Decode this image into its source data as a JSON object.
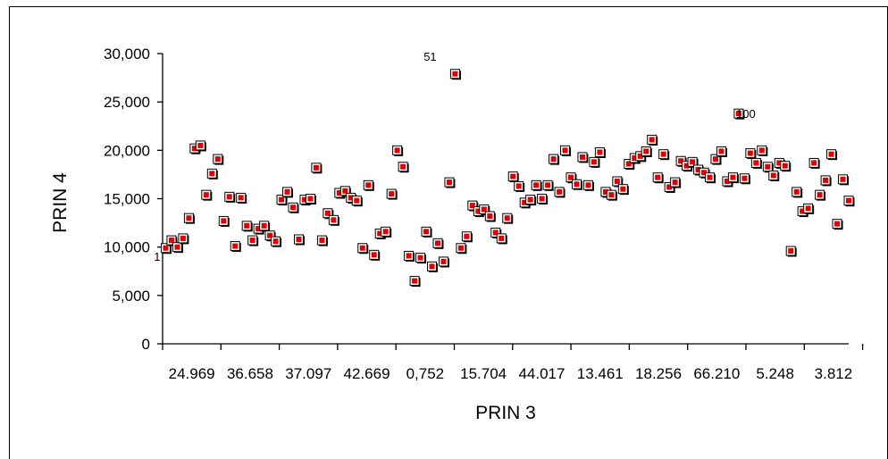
{
  "chart_data": {
    "type": "scatter",
    "xlabel": "PRIN 3",
    "ylabel": "PRIN 4",
    "ylim": [
      0,
      30000
    ],
    "yticks": [
      0,
      5000,
      10000,
      15000,
      20000,
      25000,
      30000
    ],
    "ytick_labels": [
      "0",
      "5,000",
      "10,000",
      "15,000",
      "20,000",
      "25,000",
      "30,000"
    ],
    "xtick_labels": [
      "24.969",
      "36.658",
      "37.097",
      "42.669",
      "0,752",
      "15.704",
      "44.017",
      "13.461",
      "18.256",
      "66.210",
      "5.248",
      "3.812"
    ],
    "marker_color": "#e00000",
    "grid": false,
    "points": [
      {
        "x": 1,
        "y": 9900
      },
      {
        "x": 2,
        "y": 10700
      },
      {
        "x": 3,
        "y": 10000
      },
      {
        "x": 4,
        "y": 10900
      },
      {
        "x": 5,
        "y": 13000
      },
      {
        "x": 6,
        "y": 20200
      },
      {
        "x": 7,
        "y": 20500
      },
      {
        "x": 8,
        "y": 15400
      },
      {
        "x": 9,
        "y": 17600
      },
      {
        "x": 10,
        "y": 19100
      },
      {
        "x": 11,
        "y": 12700
      },
      {
        "x": 12,
        "y": 15200
      },
      {
        "x": 13,
        "y": 10100
      },
      {
        "x": 14,
        "y": 15100
      },
      {
        "x": 15,
        "y": 12200
      },
      {
        "x": 16,
        "y": 10700
      },
      {
        "x": 17,
        "y": 11900
      },
      {
        "x": 18,
        "y": 12200
      },
      {
        "x": 19,
        "y": 11200
      },
      {
        "x": 20,
        "y": 10600
      },
      {
        "x": 21,
        "y": 14900
      },
      {
        "x": 22,
        "y": 15700
      },
      {
        "x": 23,
        "y": 14100
      },
      {
        "x": 24,
        "y": 10800
      },
      {
        "x": 25,
        "y": 14900
      },
      {
        "x": 26,
        "y": 15000
      },
      {
        "x": 27,
        "y": 18200
      },
      {
        "x": 28,
        "y": 10700
      },
      {
        "x": 29,
        "y": 13500
      },
      {
        "x": 30,
        "y": 12800
      },
      {
        "x": 31,
        "y": 15600
      },
      {
        "x": 32,
        "y": 15800
      },
      {
        "x": 33,
        "y": 15100
      },
      {
        "x": 34,
        "y": 14800
      },
      {
        "x": 35,
        "y": 9900
      },
      {
        "x": 36,
        "y": 16400
      },
      {
        "x": 37,
        "y": 9200
      },
      {
        "x": 38,
        "y": 11400
      },
      {
        "x": 39,
        "y": 11600
      },
      {
        "x": 40,
        "y": 15500
      },
      {
        "x": 41,
        "y": 20000
      },
      {
        "x": 42,
        "y": 18300
      },
      {
        "x": 43,
        "y": 9100
      },
      {
        "x": 44,
        "y": 6500
      },
      {
        "x": 45,
        "y": 8900
      },
      {
        "x": 46,
        "y": 11600
      },
      {
        "x": 47,
        "y": 8000
      },
      {
        "x": 48,
        "y": 10400
      },
      {
        "x": 49,
        "y": 8500
      },
      {
        "x": 50,
        "y": 16700
      },
      {
        "x": 51,
        "y": 27900
      },
      {
        "x": 52,
        "y": 9900
      },
      {
        "x": 53,
        "y": 11100
      },
      {
        "x": 54,
        "y": 14300
      },
      {
        "x": 55,
        "y": 13700
      },
      {
        "x": 56,
        "y": 13900
      },
      {
        "x": 57,
        "y": 13200
      },
      {
        "x": 58,
        "y": 11500
      },
      {
        "x": 59,
        "y": 10900
      },
      {
        "x": 60,
        "y": 13000
      },
      {
        "x": 61,
        "y": 17300
      },
      {
        "x": 62,
        "y": 16300
      },
      {
        "x": 63,
        "y": 14600
      },
      {
        "x": 64,
        "y": 14900
      },
      {
        "x": 65,
        "y": 16400
      },
      {
        "x": 66,
        "y": 15000
      },
      {
        "x": 67,
        "y": 16400
      },
      {
        "x": 68,
        "y": 19100
      },
      {
        "x": 69,
        "y": 15700
      },
      {
        "x": 70,
        "y": 20000
      },
      {
        "x": 71,
        "y": 17200
      },
      {
        "x": 72,
        "y": 16500
      },
      {
        "x": 73,
        "y": 19300
      },
      {
        "x": 74,
        "y": 16400
      },
      {
        "x": 75,
        "y": 18800
      },
      {
        "x": 76,
        "y": 19800
      },
      {
        "x": 77,
        "y": 15700
      },
      {
        "x": 78,
        "y": 15400
      },
      {
        "x": 79,
        "y": 16800
      },
      {
        "x": 80,
        "y": 16000
      },
      {
        "x": 81,
        "y": 18600
      },
      {
        "x": 82,
        "y": 19200
      },
      {
        "x": 83,
        "y": 19400
      },
      {
        "x": 84,
        "y": 19900
      },
      {
        "x": 85,
        "y": 21100
      },
      {
        "x": 86,
        "y": 17200
      },
      {
        "x": 87,
        "y": 19600
      },
      {
        "x": 88,
        "y": 16200
      },
      {
        "x": 89,
        "y": 16700
      },
      {
        "x": 90,
        "y": 18900
      },
      {
        "x": 91,
        "y": 18400
      },
      {
        "x": 92,
        "y": 18800
      },
      {
        "x": 93,
        "y": 18000
      },
      {
        "x": 94,
        "y": 17700
      },
      {
        "x": 95,
        "y": 17200
      },
      {
        "x": 96,
        "y": 19100
      },
      {
        "x": 97,
        "y": 19900
      },
      {
        "x": 98,
        "y": 16800
      },
      {
        "x": 99,
        "y": 17200
      },
      {
        "x": 100,
        "y": 23800
      },
      {
        "x": 101,
        "y": 17100
      },
      {
        "x": 102,
        "y": 19700
      },
      {
        "x": 103,
        "y": 18700
      },
      {
        "x": 104,
        "y": 20000
      },
      {
        "x": 105,
        "y": 18300
      },
      {
        "x": 106,
        "y": 17400
      },
      {
        "x": 107,
        "y": 18700
      },
      {
        "x": 108,
        "y": 18400
      },
      {
        "x": 109,
        "y": 9600
      },
      {
        "x": 110,
        "y": 15700
      },
      {
        "x": 111,
        "y": 13700
      },
      {
        "x": 112,
        "y": 14000
      },
      {
        "x": 113,
        "y": 18700
      },
      {
        "x": 114,
        "y": 15400
      },
      {
        "x": 115,
        "y": 16900
      },
      {
        "x": 116,
        "y": 19600
      },
      {
        "x": 117,
        "y": 12400
      },
      {
        "x": 118,
        "y": 17000
      },
      {
        "x": 119,
        "y": 14800
      }
    ],
    "point_labels": [
      {
        "x": 1,
        "text": "1"
      },
      {
        "x": 51,
        "text": "51"
      },
      {
        "x": 100,
        "text": "100"
      }
    ]
  }
}
